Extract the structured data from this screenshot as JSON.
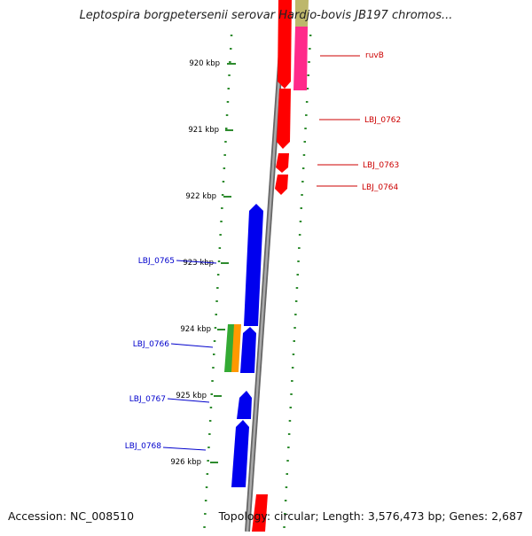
{
  "title": "Leptospira borgpetersenii serovar Hardjo-bovis JB197 chromos...",
  "accession": "Accession: NC_008510",
  "summary": "Topology: circular; Length: 3,576,473 bp; Genes: 2,687",
  "scale_ticks": [
    "920 kbp",
    "921 kbp",
    "922 kbp",
    "923 kbp",
    "924 kbp",
    "925 kbp",
    "926 kbp"
  ],
  "colors": {
    "forward_gene": "#ff0000",
    "forward_label": "#cc0000",
    "reverse_gene": "#0000ee",
    "reverse_label": "#0000cc",
    "pink_gene": "#ff2a8a",
    "olive_gene": "#bdb76b",
    "green_gene": "#33aa33",
    "orange_gene": "#ff9900",
    "backbone": "#888888",
    "tick_marks": "#2e8b2e"
  },
  "forward_genes": [
    {
      "label": "ruvB"
    },
    {
      "label": "LBJ_0762"
    },
    {
      "label": "LBJ_0763"
    },
    {
      "label": "LBJ_0764"
    }
  ],
  "reverse_genes": [
    {
      "label": "LBJ_0765"
    },
    {
      "label": "LBJ_0766"
    },
    {
      "label": "LBJ_0767"
    },
    {
      "label": "LBJ_0768"
    }
  ]
}
